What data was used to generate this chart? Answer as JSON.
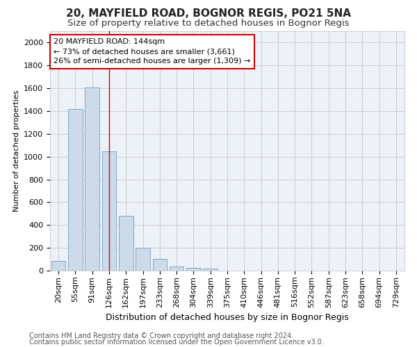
{
  "title1": "20, MAYFIELD ROAD, BOGNOR REGIS, PO21 5NA",
  "title2": "Size of property relative to detached houses in Bognor Regis",
  "xlabel": "Distribution of detached houses by size in Bognor Regis",
  "ylabel": "Number of detached properties",
  "categories": [
    "20sqm",
    "55sqm",
    "91sqm",
    "126sqm",
    "162sqm",
    "197sqm",
    "233sqm",
    "268sqm",
    "304sqm",
    "339sqm",
    "375sqm",
    "410sqm",
    "446sqm",
    "481sqm",
    "516sqm",
    "552sqm",
    "587sqm",
    "623sqm",
    "658sqm",
    "694sqm",
    "729sqm"
  ],
  "values": [
    85,
    1420,
    1610,
    1050,
    480,
    200,
    105,
    35,
    25,
    20,
    0,
    0,
    0,
    0,
    0,
    0,
    0,
    0,
    0,
    0,
    0
  ],
  "bar_color": "#ccdaea",
  "bar_edge_color": "#7aaac8",
  "red_line_x": 3,
  "annotation_text": "20 MAYFIELD ROAD: 144sqm\n← 73% of detached houses are smaller (3,661)\n26% of semi-detached houses are larger (1,309) →",
  "annotation_box_color": "#ffffff",
  "annotation_border_color": "#cc0000",
  "ylim": [
    0,
    2100
  ],
  "yticks": [
    0,
    200,
    400,
    600,
    800,
    1000,
    1200,
    1400,
    1600,
    1800,
    2000
  ],
  "red_line_color": "#cc0000",
  "grid_color": "#cccccc",
  "bg_color": "#edf2f8",
  "footer1": "Contains HM Land Registry data © Crown copyright and database right 2024.",
  "footer2": "Contains public sector information licensed under the Open Government Licence v3.0.",
  "title1_fontsize": 11,
  "title2_fontsize": 9.5,
  "xlabel_fontsize": 9,
  "ylabel_fontsize": 8,
  "tick_fontsize": 8,
  "footer_fontsize": 7
}
